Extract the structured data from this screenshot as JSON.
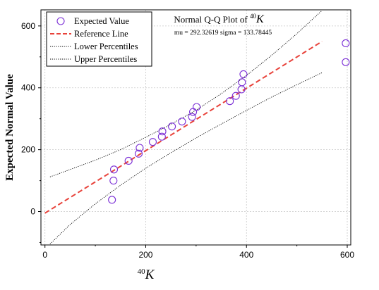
{
  "chart_data": {
    "type": "scatter",
    "title_prefix": "Normal Q-Q Plot of ",
    "title_sup": "40",
    "title_var": "K",
    "subtitle": "mu = 292.32619  sigma = 133.78445",
    "xlabel_sup": "40",
    "xlabel_var": "K",
    "ylabel": "Expected Normal Value",
    "xlim": [
      -8,
      607
    ],
    "ylim": [
      -108,
      652
    ],
    "xticks": [
      0,
      200,
      400,
      600
    ],
    "yticks": [
      0,
      200,
      400,
      600
    ],
    "grid": true,
    "legend_position": "top-left",
    "legend": [
      {
        "label": "Expected Value",
        "kind": "marker"
      },
      {
        "label": "Reference Line",
        "kind": "dashed-red"
      },
      {
        "label": "Lower Percentiles",
        "kind": "dotted"
      },
      {
        "label": "Upper Percentiles",
        "kind": "dotted"
      }
    ],
    "points": [
      {
        "x": 133,
        "y": 38
      },
      {
        "x": 136,
        "y": 100
      },
      {
        "x": 137,
        "y": 136
      },
      {
        "x": 166,
        "y": 164
      },
      {
        "x": 186,
        "y": 187
      },
      {
        "x": 188,
        "y": 206
      },
      {
        "x": 214,
        "y": 225
      },
      {
        "x": 232,
        "y": 242
      },
      {
        "x": 233,
        "y": 259
      },
      {
        "x": 252,
        "y": 275
      },
      {
        "x": 272,
        "y": 291
      },
      {
        "x": 292,
        "y": 306
      },
      {
        "x": 294,
        "y": 322
      },
      {
        "x": 301,
        "y": 338
      },
      {
        "x": 367,
        "y": 357
      },
      {
        "x": 379,
        "y": 374
      },
      {
        "x": 390,
        "y": 395
      },
      {
        "x": 391,
        "y": 418
      },
      {
        "x": 394,
        "y": 444
      },
      {
        "x": 597,
        "y": 483
      },
      {
        "x": 597,
        "y": 544
      }
    ],
    "reference_line": [
      {
        "x": 0,
        "y": -5
      },
      {
        "x": 550,
        "y": 550
      }
    ],
    "lower_percentiles": [
      {
        "x": 10,
        "y": -105
      },
      {
        "x": 50,
        "y": -42
      },
      {
        "x": 100,
        "y": 25
      },
      {
        "x": 150,
        "y": 85
      },
      {
        "x": 200,
        "y": 140
      },
      {
        "x": 250,
        "y": 190
      },
      {
        "x": 300,
        "y": 238
      },
      {
        "x": 350,
        "y": 283
      },
      {
        "x": 400,
        "y": 327
      },
      {
        "x": 450,
        "y": 370
      },
      {
        "x": 500,
        "y": 410
      },
      {
        "x": 550,
        "y": 449
      }
    ],
    "upper_percentiles": [
      {
        "x": 10,
        "y": 112
      },
      {
        "x": 50,
        "y": 136
      },
      {
        "x": 100,
        "y": 166
      },
      {
        "x": 150,
        "y": 200
      },
      {
        "x": 200,
        "y": 240
      },
      {
        "x": 250,
        "y": 282
      },
      {
        "x": 300,
        "y": 328
      },
      {
        "x": 350,
        "y": 381
      },
      {
        "x": 400,
        "y": 440
      },
      {
        "x": 450,
        "y": 505
      },
      {
        "x": 500,
        "y": 575
      },
      {
        "x": 550,
        "y": 650
      }
    ],
    "colors": {
      "marker_stroke": "#7b2fd6",
      "reference_line": "#e8423a",
      "percentile_lines": "#000000",
      "grid": "#c8c8c8"
    }
  }
}
